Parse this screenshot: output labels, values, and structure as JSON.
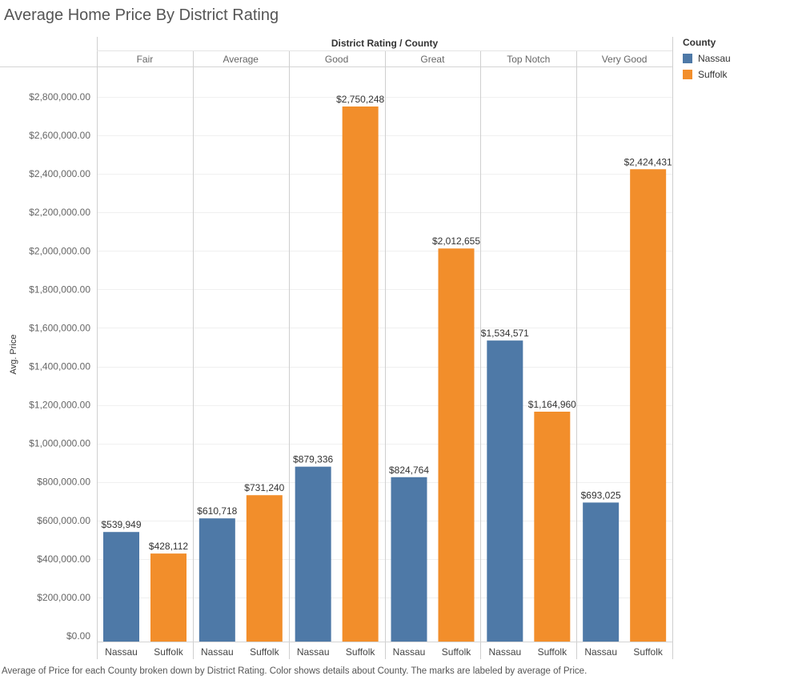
{
  "chart_data": {
    "type": "bar",
    "title": "Average Home Price By District Rating",
    "header_label": "District Rating / County",
    "ylabel": "Avg. Price",
    "ylim": [
      0,
      2900000
    ],
    "y_ticks": [
      0,
      200000,
      400000,
      600000,
      800000,
      1000000,
      1200000,
      1400000,
      1600000,
      1800000,
      2000000,
      2200000,
      2400000,
      2600000,
      2800000
    ],
    "y_tick_labels": [
      "$0.00",
      "$200,000.00",
      "$400,000.00",
      "$600,000.00",
      "$800,000.00",
      "$1,000,000.00",
      "$1,200,000.00",
      "$1,400,000.00",
      "$1,600,000.00",
      "$1,800,000.00",
      "$2,000,000.00",
      "$2,200,000.00",
      "$2,400,000.00",
      "$2,600,000.00",
      "$2,800,000.00"
    ],
    "grid": true,
    "categories": [
      "Fair",
      "Average",
      "Good",
      "Great",
      "Top Notch",
      "Very Good"
    ],
    "sub_categories": [
      "Nassau",
      "Suffolk"
    ],
    "series": [
      {
        "name": "Nassau",
        "color": "#4e79a7",
        "values": [
          539949,
          610718,
          879336,
          824764,
          1534571,
          693025
        ],
        "labels": [
          "$539,949",
          "$610,718",
          "$879,336",
          "$824,764",
          "$1,534,571",
          "$693,025"
        ]
      },
      {
        "name": "Suffolk",
        "color": "#f28e2b",
        "values": [
          428112,
          731240,
          2750248,
          2012655,
          1164960,
          2424431
        ],
        "labels": [
          "$428,112",
          "$731,240",
          "$2,750,248",
          "$2,012,655",
          "$1,164,960",
          "$2,424,431"
        ]
      }
    ],
    "legend": {
      "title": "County",
      "position": "top-right"
    },
    "caption": "Average of Price for each County broken down by District Rating.  Color shows details about County.  The marks are labeled by average of Price."
  }
}
